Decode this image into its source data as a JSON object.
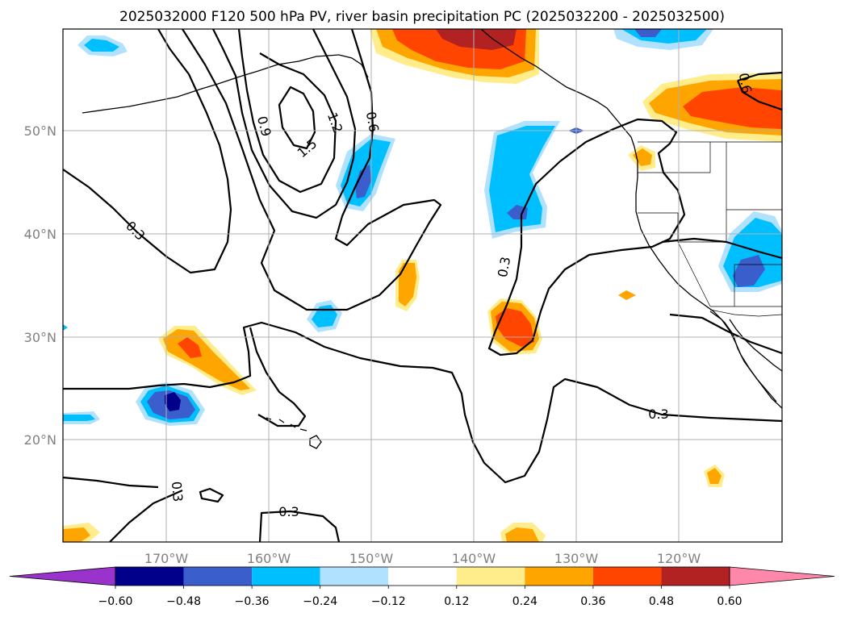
{
  "title": "2025032000 F120 500 hPa PV, river basin precipitation PC (2025032200 - 2025032500)",
  "lon_labels": [
    "170°W",
    "160°W",
    "150°W",
    "140°W",
    "130°W",
    "120°W"
  ],
  "lat_labels": [
    "50°N",
    "40°N",
    "30°N",
    "20°N"
  ],
  "colorbar": {
    "ticks": [
      "−0.60",
      "−0.48",
      "−0.36",
      "−0.24",
      "−0.12",
      "0.12",
      "0.24",
      "0.36",
      "0.48",
      "0.60"
    ],
    "colors": [
      "#9933cc",
      "#00008b",
      "#3a5fcd",
      "#00bfff",
      "#b0e2ff",
      "#ffffff",
      "#ffec8b",
      "#ffa500",
      "#ff4500",
      "#b22222",
      "#ff88aa"
    ]
  },
  "contour_labels": {
    "c1": "1.5",
    "c2": "1.2",
    "c3": "0.9",
    "c4": "0.6",
    "c5": "0.3",
    "c6": "0.3",
    "c7": "0.3",
    "c8": "0.3",
    "c9": "0.3",
    "c10": "0.6"
  }
}
